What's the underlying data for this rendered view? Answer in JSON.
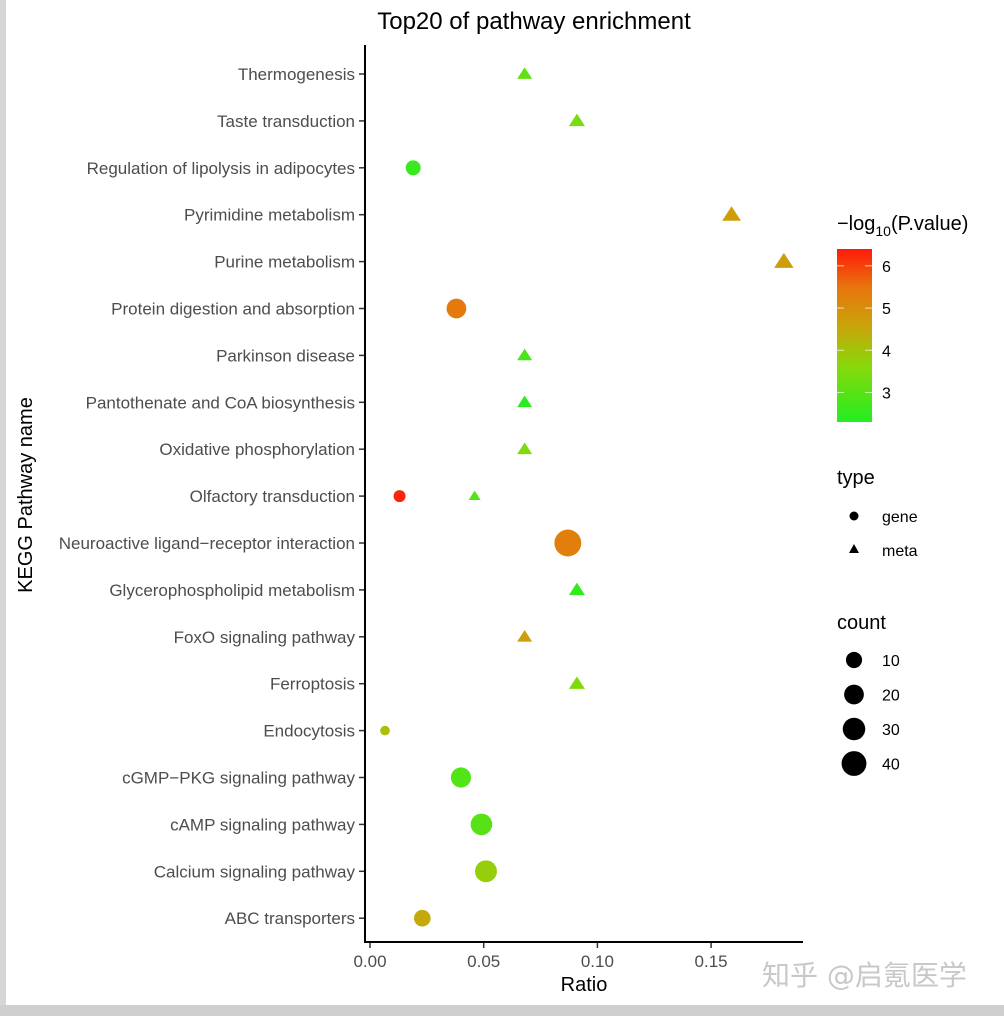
{
  "chart_data": {
    "type": "scatter",
    "title": "Top20 of pathway enrichment",
    "xlabel": "Ratio",
    "ylabel": "KEGG Pathway name",
    "xlim": [
      -0.002,
      0.19
    ],
    "xticks": [
      0.0,
      0.05,
      0.1,
      0.15
    ],
    "xtick_labels": [
      "0.00",
      "0.05",
      "0.10",
      "0.15"
    ],
    "categories": [
      "Thermogenesis",
      "Taste transduction",
      "Regulation of lipolysis in adipocytes",
      "Pyrimidine metabolism",
      "Purine metabolism",
      "Protein digestion and absorption",
      "Parkinson disease",
      "Pantothenate and CoA biosynthesis",
      "Oxidative phosphorylation",
      "Olfactory transduction",
      "Neuroactive ligand−receptor interaction",
      "Glycerophospholipid metabolism",
      "FoxO signaling pathway",
      "Ferroptosis",
      "Endocytosis",
      "cGMP−PKG signaling pathway",
      "cAMP signaling pathway",
      "Calcium signaling pathway",
      "ABC transporters"
    ],
    "points": [
      {
        "pathway": "Thermogenesis",
        "ratio": 0.068,
        "type": "meta",
        "count": 3,
        "neglog10p": 3.1
      },
      {
        "pathway": "Taste transduction",
        "ratio": 0.091,
        "type": "meta",
        "count": 4,
        "neglog10p": 3.4
      },
      {
        "pathway": "Regulation of lipolysis in adipocytes",
        "ratio": 0.019,
        "type": "gene",
        "count": 7,
        "neglog10p": 2.6
      },
      {
        "pathway": "Pyrimidine metabolism",
        "ratio": 0.159,
        "type": "meta",
        "count": 7,
        "neglog10p": 4.7
      },
      {
        "pathway": "Purine metabolism",
        "ratio": 0.182,
        "type": "meta",
        "count": 8,
        "neglog10p": 4.7
      },
      {
        "pathway": "Protein digestion and absorption",
        "ratio": 0.038,
        "type": "gene",
        "count": 17,
        "neglog10p": 5.4
      },
      {
        "pathway": "Parkinson disease",
        "ratio": 0.068,
        "type": "meta",
        "count": 3,
        "neglog10p": 2.8
      },
      {
        "pathway": "Pantothenate and CoA biosynthesis",
        "ratio": 0.068,
        "type": "meta",
        "count": 3,
        "neglog10p": 2.4
      },
      {
        "pathway": "Oxidative phosphorylation",
        "ratio": 0.068,
        "type": "meta",
        "count": 3,
        "neglog10p": 3.5
      },
      {
        "pathway": "Olfactory transduction",
        "ratio": 0.013,
        "type": "gene",
        "count": 3,
        "neglog10p": 6.3
      },
      {
        "pathway": "Olfactory transduction",
        "ratio": 0.046,
        "type": "meta",
        "count": 1,
        "neglog10p": 2.9
      },
      {
        "pathway": "Neuroactive ligand−receptor interaction",
        "ratio": 0.087,
        "type": "gene",
        "count": 40,
        "neglog10p": 5.3
      },
      {
        "pathway": "Glycerophospholipid metabolism",
        "ratio": 0.091,
        "type": "meta",
        "count": 4,
        "neglog10p": 2.5
      },
      {
        "pathway": "FoxO signaling pathway",
        "ratio": 0.068,
        "type": "meta",
        "count": 3,
        "neglog10p": 4.7
      },
      {
        "pathway": "Ferroptosis",
        "ratio": 0.091,
        "type": "meta",
        "count": 4,
        "neglog10p": 3.5
      },
      {
        "pathway": "Endocytosis",
        "ratio": 0.0066,
        "type": "gene",
        "count": 1,
        "neglog10p": 4.1
      },
      {
        "pathway": "cGMP−PKG signaling pathway",
        "ratio": 0.04,
        "type": "gene",
        "count": 18,
        "neglog10p": 2.9
      },
      {
        "pathway": "cAMP signaling pathway",
        "ratio": 0.049,
        "type": "gene",
        "count": 22,
        "neglog10p": 3.0
      },
      {
        "pathway": "Calcium signaling pathway",
        "ratio": 0.051,
        "type": "gene",
        "count": 23,
        "neglog10p": 3.8
      },
      {
        "pathway": "ABC transporters",
        "ratio": 0.023,
        "type": "gene",
        "count": 10,
        "neglog10p": 4.5
      }
    ],
    "color_legend": {
      "title_prefix": "−log",
      "title_sub": "10",
      "title_suffix": "(P.value)",
      "range": [
        2.3,
        6.4
      ],
      "ticks": [
        6,
        5,
        4,
        3
      ],
      "low_color": "#22ee22",
      "mid_color": "#c9a50a",
      "high_color": "#ff1a0a"
    },
    "shape_legend": {
      "title": "type",
      "items": [
        {
          "label": "gene",
          "shape": "circle"
        },
        {
          "label": "meta",
          "shape": "triangle"
        }
      ]
    },
    "size_legend": {
      "title": "count",
      "items": [
        10,
        20,
        30,
        40
      ],
      "labels": [
        "10",
        "20",
        "30",
        "40"
      ]
    },
    "grid": false,
    "legend_position": "right"
  },
  "watermark": "知乎 @启氪医学"
}
